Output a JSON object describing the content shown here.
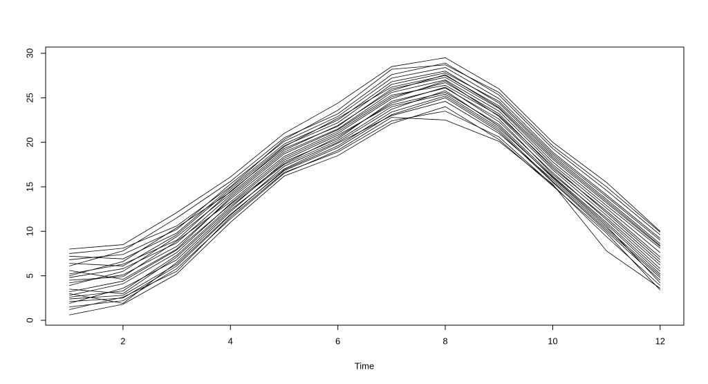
{
  "chart_data": {
    "type": "line",
    "x_label": "Time",
    "x": [
      1,
      2,
      3,
      4,
      5,
      6,
      7,
      8,
      9,
      10,
      11,
      12
    ],
    "xlim": [
      0.56,
      12.44
    ],
    "xticks": [
      2,
      4,
      6,
      8,
      10,
      12
    ],
    "ylim": [
      -0.55,
      30.7
    ],
    "yticks": [
      0,
      5,
      10,
      15,
      20,
      25,
      30
    ],
    "series": [
      {
        "color": "#000000",
        "values": [
          4.2,
          5.1,
          8.3,
          13.6,
          18.4,
          21.2,
          25.1,
          26.7,
          23.2,
          17.1,
          12.3,
          7.1
        ]
      },
      {
        "color": "#000000",
        "values": [
          2.1,
          2.5,
          6.1,
          11.8,
          16.9,
          19.6,
          23.4,
          25.2,
          21.4,
          15.6,
          10.2,
          4.8
        ]
      },
      {
        "color": "#000000",
        "values": [
          6.8,
          7.4,
          10.2,
          15.3,
          20.1,
          22.9,
          27.2,
          28.4,
          24.9,
          18.9,
          14.1,
          9.2
        ]
      },
      {
        "color": "#000000",
        "values": [
          0.6,
          1.8,
          5.2,
          11.0,
          16.2,
          18.5,
          22.1,
          24.0,
          20.3,
          15.1,
          9.8,
          3.4
        ]
      },
      {
        "color": "#000000",
        "values": [
          8.0,
          8.5,
          12.1,
          16.1,
          21.0,
          24.4,
          28.5,
          29.5,
          26.0,
          20.0,
          15.5,
          10.0
        ]
      },
      {
        "color": "#000000",
        "values": [
          3.5,
          3.0,
          7.1,
          12.6,
          17.8,
          20.4,
          24.6,
          26.1,
          22.6,
          16.4,
          11.5,
          6.2
        ]
      },
      {
        "color": "#000000",
        "values": [
          5.2,
          6.3,
          9.0,
          14.5,
          19.3,
          21.8,
          26.0,
          27.3,
          23.8,
          17.8,
          12.9,
          8.1
        ]
      },
      {
        "color": "#000000",
        "values": [
          1.5,
          2.2,
          5.8,
          11.4,
          16.5,
          19.1,
          22.8,
          22.5,
          20.1,
          15.3,
          7.8,
          3.6
        ]
      },
      {
        "color": "#000000",
        "values": [
          7.2,
          6.9,
          9.8,
          14.9,
          19.8,
          22.5,
          26.8,
          28.0,
          24.4,
          18.5,
          13.6,
          8.6
        ]
      },
      {
        "color": "#000000",
        "values": [
          2.8,
          4.1,
          7.6,
          13.1,
          18.0,
          20.8,
          24.2,
          25.6,
          22.0,
          16.2,
          11.0,
          5.5
        ]
      },
      {
        "color": "#000000",
        "values": [
          4.8,
          5.8,
          8.7,
          14.0,
          18.9,
          21.5,
          25.6,
          27.0,
          23.5,
          17.5,
          12.6,
          7.6
        ]
      },
      {
        "color": "#000000",
        "values": [
          3.0,
          1.9,
          6.5,
          12.2,
          17.3,
          20.0,
          23.7,
          25.8,
          21.8,
          16.0,
          10.6,
          4.2
        ]
      },
      {
        "color": "#000000",
        "values": [
          6.1,
          7.8,
          11.5,
          15.6,
          20.5,
          23.2,
          27.6,
          28.9,
          25.3,
          19.3,
          14.6,
          9.6
        ]
      },
      {
        "color": "#000000",
        "values": [
          1.9,
          3.6,
          6.8,
          12.4,
          17.0,
          19.9,
          23.0,
          24.6,
          21.0,
          15.8,
          10.4,
          5.0
        ]
      },
      {
        "color": "#000000",
        "values": [
          5.6,
          4.6,
          8.0,
          13.8,
          18.7,
          21.4,
          25.3,
          26.4,
          23.0,
          17.3,
          12.1,
          6.8
        ]
      },
      {
        "color": "#000000",
        "values": [
          3.9,
          5.5,
          9.4,
          14.2,
          19.1,
          21.9,
          25.8,
          27.6,
          23.9,
          18.1,
          13.2,
          8.3
        ]
      },
      {
        "color": "#000000",
        "values": [
          7.5,
          8.1,
          10.6,
          15.0,
          20.3,
          23.6,
          28.2,
          28.7,
          25.6,
          19.6,
          15.0,
          9.9
        ]
      },
      {
        "color": "#000000",
        "values": [
          2.4,
          2.8,
          6.3,
          11.9,
          16.8,
          19.4,
          23.1,
          25.0,
          21.2,
          15.5,
          10.0,
          4.5
        ]
      },
      {
        "color": "#000000",
        "values": [
          4.5,
          4.9,
          8.9,
          13.3,
          18.2,
          21.0,
          24.9,
          26.9,
          22.9,
          16.9,
          11.8,
          6.5
        ]
      },
      {
        "color": "#000000",
        "values": [
          1.2,
          2.6,
          5.5,
          11.6,
          16.6,
          18.9,
          22.4,
          23.5,
          20.6,
          15.2,
          9.4,
          3.9
        ]
      },
      {
        "color": "#000000",
        "values": [
          6.4,
          6.1,
          9.6,
          14.7,
          19.6,
          22.2,
          26.5,
          27.8,
          24.6,
          18.7,
          13.9,
          9.0
        ]
      },
      {
        "color": "#000000",
        "values": [
          3.2,
          4.4,
          7.9,
          13.0,
          17.6,
          20.6,
          24.4,
          26.2,
          22.3,
          16.6,
          11.3,
          5.8
        ]
      },
      {
        "color": "#000000",
        "values": [
          5.0,
          6.6,
          10.4,
          14.4,
          19.5,
          22.7,
          26.2,
          27.5,
          24.1,
          18.3,
          13.4,
          8.4
        ]
      },
      {
        "color": "#000000",
        "values": [
          2.6,
          3.3,
          7.3,
          12.8,
          17.5,
          20.2,
          24.0,
          25.4,
          21.6,
          16.1,
          10.8,
          5.2
        ]
      }
    ]
  }
}
